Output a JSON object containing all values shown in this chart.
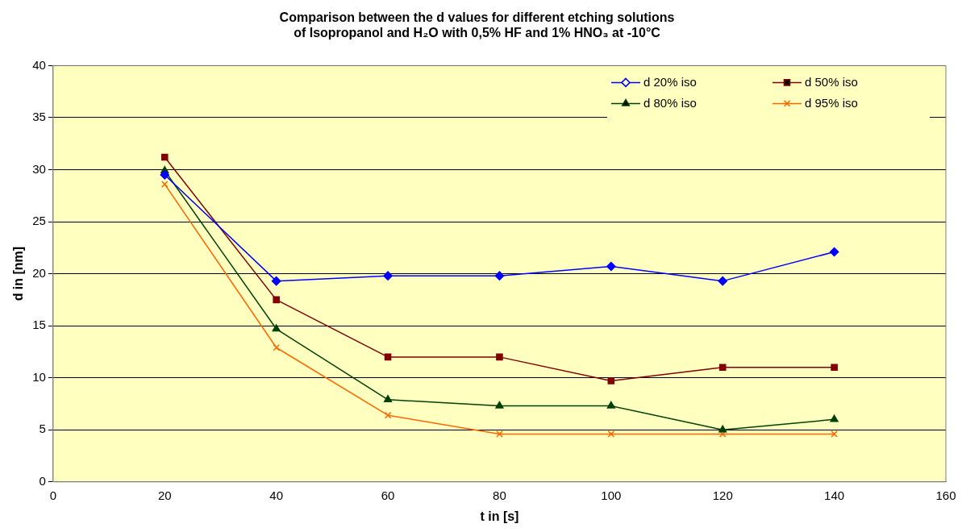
{
  "chart_data": {
    "type": "line",
    "title": "Comparison between the d values for different etching solutions\nof Isopropanol and H₂O with 0,5% HF and 1% HNO₃ at -10°C",
    "xlabel": "t in [s]",
    "ylabel": "d in [nm]",
    "x": [
      20,
      40,
      60,
      80,
      100,
      120,
      140
    ],
    "series": [
      {
        "name": "d 20% iso",
        "color": "#0000ff",
        "marker": "diamond",
        "values": [
          29.5,
          19.3,
          19.8,
          19.8,
          20.7,
          19.3,
          22.1
        ]
      },
      {
        "name": "d 50% iso",
        "color": "#800000",
        "marker": "square",
        "values": [
          31.2,
          17.5,
          12.0,
          12.0,
          9.7,
          11.0,
          11.0
        ]
      },
      {
        "name": "d 80% iso",
        "color": "#004000",
        "marker": "triangle",
        "values": [
          29.9,
          14.7,
          7.9,
          7.3,
          7.3,
          5.0,
          6.0
        ]
      },
      {
        "name": "d 95% iso",
        "color": "#ff6600",
        "marker": "cross",
        "values": [
          28.6,
          12.9,
          6.4,
          4.6,
          4.6,
          4.6,
          4.6
        ]
      }
    ],
    "xlim": [
      0,
      160
    ],
    "xticks": [
      0,
      20,
      40,
      60,
      80,
      100,
      120,
      140,
      160
    ],
    "ylim": [
      0,
      40
    ],
    "yticks": [
      0,
      5,
      10,
      15,
      20,
      25,
      30,
      35,
      40
    ],
    "grid": "y",
    "legend": "top right",
    "line_style": "solid"
  }
}
